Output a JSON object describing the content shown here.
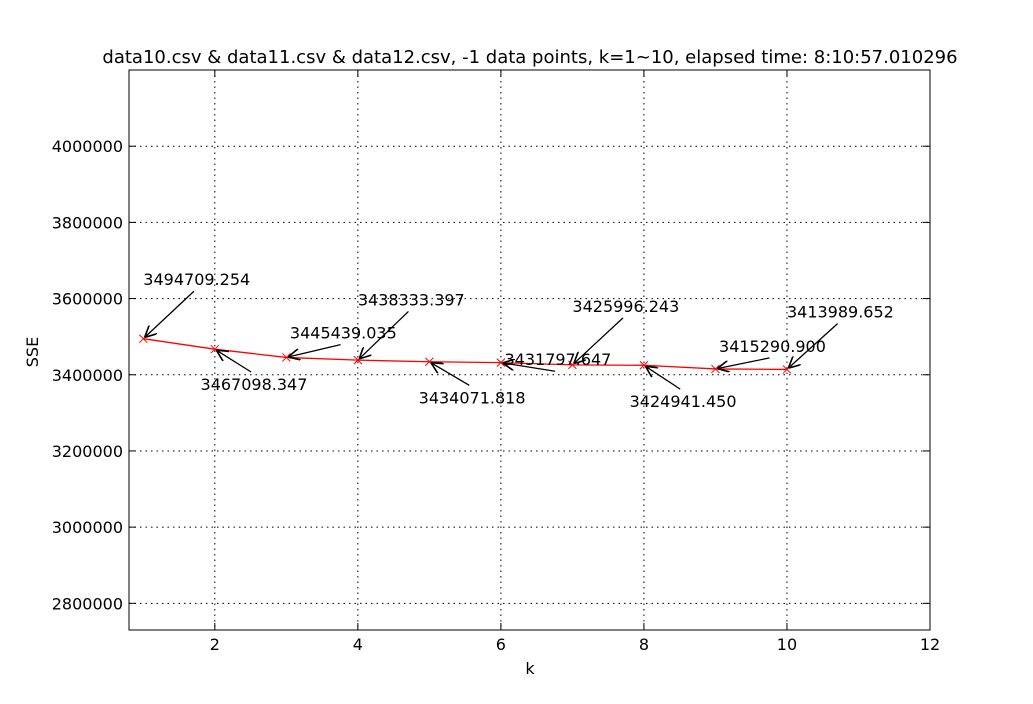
{
  "chart_data": {
    "type": "line",
    "title": "data10.csv & data11.csv & data12.csv, -1 data points, k=1~10, elapsed time: 8:10:57.010296",
    "xlabel": "k",
    "ylabel": "SSE",
    "xlim": [
      0.8,
      12
    ],
    "ylim": [
      2730000,
      4200000
    ],
    "xticks": [
      2,
      4,
      6,
      8,
      10,
      12
    ],
    "yticks": [
      2800000,
      3000000,
      3200000,
      3400000,
      3600000,
      3800000,
      4000000
    ],
    "grid": true,
    "series_color": "#ff0000",
    "marker": "x",
    "x": [
      1,
      2,
      3,
      4,
      5,
      6,
      7,
      8,
      9,
      10
    ],
    "y": [
      3494709.254,
      3467098.347,
      3445439.035,
      3438333.397,
      3434071.818,
      3431797.647,
      3425996.243,
      3424941.45,
      3415290.9,
      3413989.652
    ],
    "annotations": [
      {
        "x": 1,
        "y": 3494709.254,
        "text": "3494709.254",
        "tx": 1,
        "ty": 3635000
      },
      {
        "x": 2,
        "y": 3467098.347,
        "text": "3467098.347",
        "tx": 1.8,
        "ty": 3360000
      },
      {
        "x": 3,
        "y": 3445439.035,
        "text": "3445439.035",
        "tx": 3.05,
        "ty": 3495000
      },
      {
        "x": 4,
        "y": 3438333.397,
        "text": "3438333.397",
        "tx": 4.0,
        "ty": 3582000
      },
      {
        "x": 5,
        "y": 3434071.818,
        "text": "3434071.818",
        "tx": 4.85,
        "ty": 3325000
      },
      {
        "x": 6,
        "y": 3431797.647,
        "text": "3431797.647",
        "tx": 6.05,
        "ty": 3425000
      },
      {
        "x": 7,
        "y": 3425996.243,
        "text": "3425996.243",
        "tx": 7.0,
        "ty": 3565000
      },
      {
        "x": 8,
        "y": 3424941.45,
        "text": "3424941.450",
        "tx": 7.8,
        "ty": 3315000
      },
      {
        "x": 9,
        "y": 3415290.9,
        "text": "3415290.900",
        "tx": 9.05,
        "ty": 3460000
      },
      {
        "x": 10,
        "y": 3413989.652,
        "text": "3413989.652",
        "tx": 10.0,
        "ty": 3550000
      }
    ]
  }
}
